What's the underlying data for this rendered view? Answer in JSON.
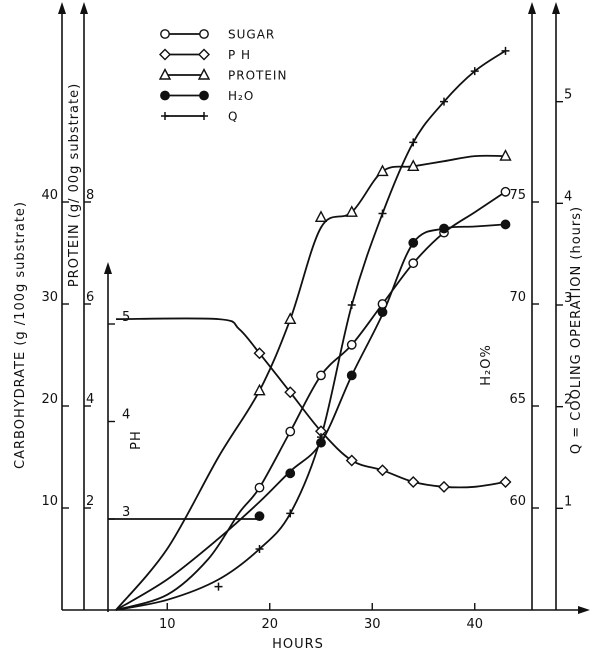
{
  "chart_data": {
    "type": "line",
    "xlabel": "HOURS",
    "x_ticks": [
      10,
      20,
      30,
      40
    ],
    "xlim": [
      5,
      44
    ],
    "axes": {
      "carbohydrate": {
        "label": "CARBOHYDRATE  (g /100g substrate)",
        "ticks": [
          "10",
          "20",
          "30",
          "40"
        ],
        "tick_values": [
          10,
          20,
          30,
          40
        ],
        "range": [
          0,
          50
        ]
      },
      "protein": {
        "label": "PROTEIN  (g/ 00g substrate)",
        "ticks": [
          "2",
          "4",
          "6",
          "8"
        ],
        "tick_values": [
          2,
          4,
          6,
          8
        ],
        "range": [
          0,
          10
        ]
      },
      "ph": {
        "label": "PH",
        "ticks": [
          "3",
          "4",
          "5"
        ],
        "tick_values": [
          3,
          4,
          5
        ],
        "range": [
          1.2,
          5.5
        ]
      },
      "h2o": {
        "label": "H₂O%",
        "ticks": [
          "60",
          "65",
          "70",
          "75"
        ],
        "tick_values": [
          60,
          65,
          70,
          75
        ],
        "range": [
          55,
          80
        ]
      },
      "q": {
        "label": "Q = COOLING  OPERATION  (hours)",
        "ticks": [
          "1",
          "2",
          "3",
          "4",
          "5"
        ],
        "tick_values": [
          1,
          2,
          3,
          4,
          5
        ],
        "range": [
          0,
          6
        ]
      }
    },
    "legend": [
      {
        "series": "sugar",
        "label": "SUGAR",
        "marker": "open-circle"
      },
      {
        "series": "ph",
        "label": "P H",
        "marker": "open-diamond"
      },
      {
        "series": "protein",
        "label": "PROTEIN",
        "marker": "open-triangle"
      },
      {
        "series": "h2o",
        "label": "H₂O",
        "marker": "filled-circle"
      },
      {
        "series": "q",
        "label": "Q",
        "marker": "plus"
      }
    ],
    "series": [
      {
        "id": "sugar",
        "axis": "carbohydrate",
        "curve": [
          [
            5,
            0
          ],
          [
            10,
            1.5
          ],
          [
            14,
            5
          ],
          [
            17,
            9.5
          ],
          [
            19,
            12
          ],
          [
            22,
            17.5
          ],
          [
            25,
            23
          ],
          [
            28,
            26
          ],
          [
            31,
            30
          ],
          [
            34,
            34
          ],
          [
            37,
            37
          ],
          [
            40,
            39
          ],
          [
            43,
            41
          ]
        ],
        "points": [
          [
            19,
            12
          ],
          [
            22,
            17.5
          ],
          [
            25,
            23
          ],
          [
            28,
            26
          ],
          [
            31,
            30
          ],
          [
            34,
            34
          ],
          [
            37,
            37
          ],
          [
            43,
            41
          ]
        ]
      },
      {
        "id": "ph",
        "axis": "ph",
        "curve": [
          [
            5,
            5.05
          ],
          [
            15,
            5.05
          ],
          [
            17,
            4.95
          ],
          [
            19,
            4.7
          ],
          [
            22,
            4.3
          ],
          [
            25,
            3.9
          ],
          [
            28,
            3.6
          ],
          [
            31,
            3.5
          ],
          [
            34,
            3.38
          ],
          [
            37,
            3.33
          ],
          [
            40,
            3.33
          ],
          [
            43,
            3.38
          ]
        ],
        "points": [
          [
            19,
            4.7
          ],
          [
            22,
            4.3
          ],
          [
            25,
            3.9
          ],
          [
            28,
            3.6
          ],
          [
            31,
            3.5
          ],
          [
            34,
            3.38
          ],
          [
            37,
            3.33
          ],
          [
            43,
            3.38
          ]
        ]
      },
      {
        "id": "protein",
        "axis": "protein",
        "curve": [
          [
            5,
            0
          ],
          [
            10,
            1.2
          ],
          [
            15,
            3
          ],
          [
            19,
            4.3
          ],
          [
            22,
            5.7
          ],
          [
            25,
            7.5
          ],
          [
            28,
            7.8
          ],
          [
            31,
            8.6
          ],
          [
            34,
            8.7
          ],
          [
            37,
            8.8
          ],
          [
            40,
            8.9
          ],
          [
            43,
            8.9
          ]
        ],
        "points": [
          [
            19,
            4.3
          ],
          [
            22,
            5.7
          ],
          [
            25,
            7.7
          ],
          [
            28,
            7.8
          ],
          [
            31,
            8.6
          ],
          [
            34,
            8.7
          ],
          [
            43,
            8.9
          ]
        ]
      },
      {
        "id": "h2o",
        "axis": "h2o",
        "curve": [
          [
            5,
            55
          ],
          [
            10,
            56.5
          ],
          [
            15,
            58.5
          ],
          [
            19,
            60.3
          ],
          [
            22,
            61.8
          ],
          [
            25,
            63.2
          ],
          [
            28,
            66.5
          ],
          [
            31,
            69.5
          ],
          [
            34,
            73
          ],
          [
            37,
            73.7
          ],
          [
            40,
            73.8
          ],
          [
            43,
            73.9
          ]
        ],
        "points": [
          [
            19,
            59.6
          ],
          [
            22,
            61.7
          ],
          [
            25,
            63.2
          ],
          [
            28,
            66.5
          ],
          [
            31,
            69.6
          ],
          [
            34,
            73
          ],
          [
            37,
            73.7
          ],
          [
            43,
            73.9
          ]
        ]
      },
      {
        "id": "q",
        "axis": "q",
        "curve": [
          [
            5,
            0
          ],
          [
            10,
            0.1
          ],
          [
            15,
            0.3
          ],
          [
            19,
            0.6
          ],
          [
            22,
            0.95
          ],
          [
            25,
            1.7
          ],
          [
            28,
            3
          ],
          [
            31,
            3.9
          ],
          [
            34,
            4.6
          ],
          [
            37,
            5
          ],
          [
            40,
            5.3
          ],
          [
            43,
            5.5
          ]
        ],
        "points": [
          [
            15,
            0.23
          ],
          [
            19,
            0.6
          ],
          [
            22,
            0.95
          ],
          [
            25,
            1.7
          ],
          [
            28,
            3
          ],
          [
            31,
            3.9
          ],
          [
            34,
            4.6
          ],
          [
            37,
            5
          ],
          [
            40,
            5.3
          ],
          [
            43,
            5.5
          ]
        ]
      }
    ],
    "ph_guides": [
      {
        "x_from": 5,
        "x_to": 19,
        "value": 3.0
      }
    ]
  }
}
